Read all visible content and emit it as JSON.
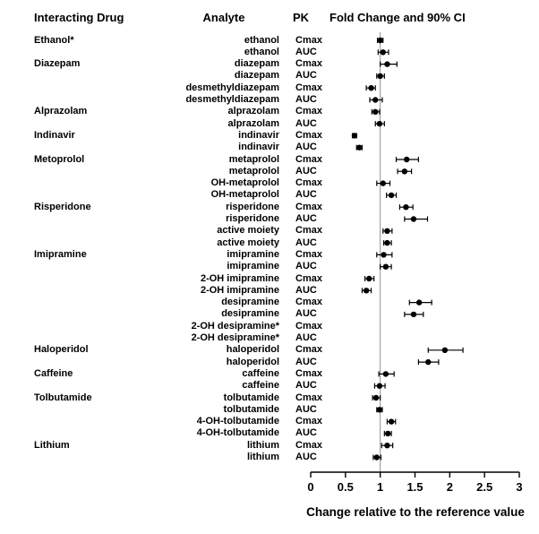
{
  "headers": {
    "interacting_drug": "Interacting Drug",
    "analyte": "Analyte",
    "pk": "PK",
    "plot": "Fold Change and 90% CI"
  },
  "axis": {
    "xlim": [
      0,
      3
    ],
    "ticks": [
      0,
      0.5,
      1,
      1.5,
      2,
      2.5,
      3
    ],
    "tick_labels": [
      "0",
      "0.5",
      "1",
      "1.5",
      "2",
      "2.5",
      "3"
    ],
    "reference_line": 1,
    "xlabel": "Change relative to the reference value"
  },
  "colors": {
    "marker": "#000000",
    "ci_line": "#000000",
    "reference_line": "#909090",
    "background": "#ffffff"
  },
  "chart_data": {
    "type": "scatter",
    "subtype": "forest-plot",
    "title": "Fold Change and 90% CI",
    "xlabel": "Change relative to the reference value",
    "xlim": [
      0,
      3
    ],
    "reference_line": 1,
    "grid": false,
    "rows": [
      {
        "drug": "Ethanol*",
        "analyte": "ethanol",
        "pk": "Cmax",
        "est": 1.0,
        "lo": 0.96,
        "hi": 1.04
      },
      {
        "drug": "",
        "analyte": "ethanol",
        "pk": "AUC",
        "est": 1.04,
        "lo": 0.97,
        "hi": 1.12
      },
      {
        "drug": "Diazepam",
        "analyte": "diazepam",
        "pk": "Cmax",
        "est": 1.1,
        "lo": 1.0,
        "hi": 1.24
      },
      {
        "drug": "",
        "analyte": "diazepam",
        "pk": "AUC",
        "est": 1.0,
        "lo": 0.95,
        "hi": 1.06
      },
      {
        "drug": "",
        "analyte": "desmethyldiazepam",
        "pk": "Cmax",
        "est": 0.87,
        "lo": 0.8,
        "hi": 0.93
      },
      {
        "drug": "",
        "analyte": "desmethyldiazepam",
        "pk": "AUC",
        "est": 0.93,
        "lo": 0.85,
        "hi": 1.03
      },
      {
        "drug": "Alprazolam",
        "analyte": "alprazolam",
        "pk": "Cmax",
        "est": 0.93,
        "lo": 0.88,
        "hi": 0.99
      },
      {
        "drug": "",
        "analyte": "alprazolam",
        "pk": "AUC",
        "est": 0.99,
        "lo": 0.93,
        "hi": 1.06
      },
      {
        "drug": "Indinavir",
        "analyte": "indinavir",
        "pk": "Cmax",
        "est": 0.63,
        "lo": 0.6,
        "hi": 0.66
      },
      {
        "drug": "",
        "analyte": "indinavir",
        "pk": "AUC",
        "est": 0.7,
        "lo": 0.66,
        "hi": 0.74
      },
      {
        "drug": "Metoprolol",
        "analyte": "metaprolol",
        "pk": "Cmax",
        "est": 1.38,
        "lo": 1.23,
        "hi": 1.55
      },
      {
        "drug": "",
        "analyte": "metaprolol",
        "pk": "AUC",
        "est": 1.35,
        "lo": 1.25,
        "hi": 1.45
      },
      {
        "drug": "",
        "analyte": "OH-metaprolol",
        "pk": "Cmax",
        "est": 1.04,
        "lo": 0.95,
        "hi": 1.14
      },
      {
        "drug": "",
        "analyte": "OH-metaprolol",
        "pk": "AUC",
        "est": 1.16,
        "lo": 1.09,
        "hi": 1.23
      },
      {
        "drug": "Risperidone",
        "analyte": "risperidone",
        "pk": "Cmax",
        "est": 1.37,
        "lo": 1.28,
        "hi": 1.47
      },
      {
        "drug": "",
        "analyte": "risperidone",
        "pk": "AUC",
        "est": 1.48,
        "lo": 1.35,
        "hi": 1.68
      },
      {
        "drug": "",
        "analyte": "active moiety",
        "pk": "Cmax",
        "est": 1.1,
        "lo": 1.04,
        "hi": 1.17
      },
      {
        "drug": "",
        "analyte": "active moiety",
        "pk": "AUC",
        "est": 1.1,
        "lo": 1.05,
        "hi": 1.16
      },
      {
        "drug": "Imipramine",
        "analyte": "imipramine",
        "pk": "Cmax",
        "est": 1.05,
        "lo": 0.95,
        "hi": 1.17
      },
      {
        "drug": "",
        "analyte": "imipramine",
        "pk": "AUC",
        "est": 1.08,
        "lo": 1.0,
        "hi": 1.16
      },
      {
        "drug": "",
        "analyte": "2-OH imipramine",
        "pk": "Cmax",
        "est": 0.84,
        "lo": 0.78,
        "hi": 0.91
      },
      {
        "drug": "",
        "analyte": "2-OH imipramine",
        "pk": "AUC",
        "est": 0.8,
        "lo": 0.74,
        "hi": 0.87
      },
      {
        "drug": "",
        "analyte": "desipramine",
        "pk": "Cmax",
        "est": 1.56,
        "lo": 1.42,
        "hi": 1.74
      },
      {
        "drug": "",
        "analyte": "desipramine",
        "pk": "AUC",
        "est": 1.48,
        "lo": 1.35,
        "hi": 1.62
      },
      {
        "drug": "",
        "analyte": "2-OH desipramine*",
        "pk": "Cmax",
        "est": null,
        "lo": null,
        "hi": null
      },
      {
        "drug": "",
        "analyte": "2-OH desipramine*",
        "pk": "AUC",
        "est": null,
        "lo": null,
        "hi": null
      },
      {
        "drug": "Haloperidol",
        "analyte": "haloperidol",
        "pk": "Cmax",
        "est": 1.93,
        "lo": 1.69,
        "hi": 2.19
      },
      {
        "drug": "",
        "analyte": "haloperidol",
        "pk": "AUC",
        "est": 1.69,
        "lo": 1.55,
        "hi": 1.84
      },
      {
        "drug": "Caffeine",
        "analyte": "caffeine",
        "pk": "Cmax",
        "est": 1.08,
        "lo": 0.98,
        "hi": 1.2
      },
      {
        "drug": "",
        "analyte": "caffeine",
        "pk": "AUC",
        "est": 0.99,
        "lo": 0.92,
        "hi": 1.07
      },
      {
        "drug": "Tolbutamide",
        "analyte": "tolbutamide",
        "pk": "Cmax",
        "est": 0.94,
        "lo": 0.89,
        "hi": 1.0
      },
      {
        "drug": "",
        "analyte": "tolbutamide",
        "pk": "AUC",
        "est": 0.99,
        "lo": 0.95,
        "hi": 1.03
      },
      {
        "drug": "",
        "analyte": "4-OH-tolbutamide",
        "pk": "Cmax",
        "est": 1.16,
        "lo": 1.1,
        "hi": 1.22
      },
      {
        "drug": "",
        "analyte": "4-OH-tolbutamide",
        "pk": "AUC",
        "est": 1.11,
        "lo": 1.06,
        "hi": 1.16
      },
      {
        "drug": "Lithium",
        "analyte": "lithium",
        "pk": "Cmax",
        "est": 1.1,
        "lo": 1.02,
        "hi": 1.18
      },
      {
        "drug": "",
        "analyte": "lithium",
        "pk": "AUC",
        "est": 0.95,
        "lo": 0.9,
        "hi": 1.01
      }
    ]
  }
}
